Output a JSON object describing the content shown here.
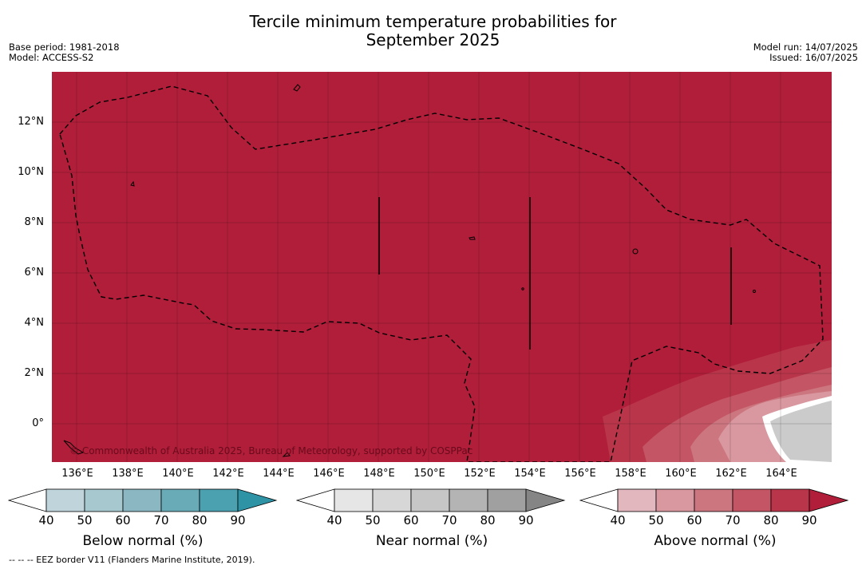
{
  "title_line1": "Tercile minimum temperature probabilities for",
  "title_line2": "September 2025",
  "meta_left": {
    "base_period": "Base period: 1981-2018",
    "model": "Model: ACCESS-S2"
  },
  "meta_right": {
    "model_run": "Model run: 14/07/2025",
    "issued": "Issued: 16/07/2025"
  },
  "copyright": "© Commonwealth of Australia 2025, Bureau of Meteorology, supported by COSPPac",
  "lat_labels": [
    "12°N",
    "10°N",
    "8°N",
    "6°N",
    "4°N",
    "2°N",
    "0°"
  ],
  "lon_labels": [
    "136°E",
    "138°E",
    "140°E",
    "142°E",
    "144°E",
    "146°E",
    "148°E",
    "150°E",
    "152°E",
    "154°E",
    "156°E",
    "158°E",
    "160°E",
    "162°E",
    "164°E"
  ],
  "colorbars": [
    {
      "title": "Below normal (%)",
      "ticks": [
        "40",
        "50",
        "60",
        "70",
        "80",
        "90"
      ],
      "colors": [
        "#bfd5db",
        "#a7c8cf",
        "#8ab7c1",
        "#6aabb8",
        "#4ba1b0",
        "#2f93a6"
      ]
    },
    {
      "title": "Near normal (%)",
      "ticks": [
        "40",
        "50",
        "60",
        "70",
        "80",
        "90"
      ],
      "colors": [
        "#e6e6e6",
        "#d7d7d7",
        "#c6c6c6",
        "#b4b4b4",
        "#a0a0a0",
        "#858585"
      ]
    },
    {
      "title": "Above normal (%)",
      "ticks": [
        "40",
        "50",
        "60",
        "70",
        "80",
        "90"
      ],
      "colors": [
        "#e2b7be",
        "#d9979f",
        "#cc7680",
        "#c45564",
        "#b9364a",
        "#b01e3a"
      ]
    }
  ],
  "footnote": "--  --  -- EEZ border V11 (Flanders Marine Institute, 2019).",
  "colors": {
    "map_above_90": "#b01e3a"
  }
}
